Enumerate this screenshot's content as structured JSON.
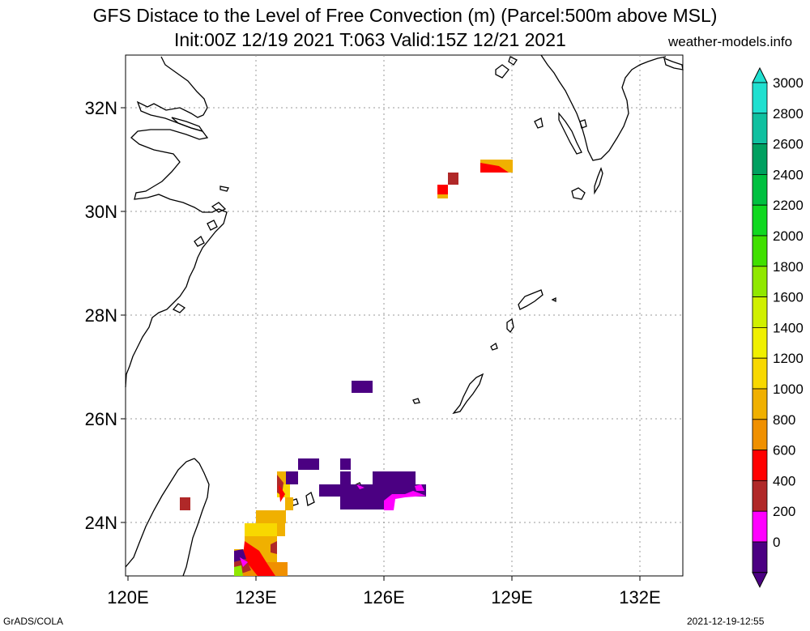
{
  "title_line1": "GFS Distace to the Level of Free Convection (m) (Parcel:500m above MSL)",
  "title_line2": "Init:00Z 12/19 2021 T:063 Valid:15Z 12/21 2021",
  "site": "weather-models.info",
  "footer_left": "GrADS/COLA",
  "footer_right": "2021-12-19-12:55",
  "lat_labels": [
    "32N",
    "30N",
    "28N",
    "26N",
    "24N"
  ],
  "lon_labels": [
    "120E",
    "123E",
    "126E",
    "129E",
    "132E"
  ],
  "colorbar": {
    "labels": [
      "3000",
      "2800",
      "2600",
      "2400",
      "2200",
      "2000",
      "1800",
      "1600",
      "1400",
      "1200",
      "1000",
      "800",
      "600",
      "400",
      "200",
      "0"
    ],
    "colors": [
      "#20e0d0",
      "#10c0a0",
      "#00a060",
      "#00c040",
      "#10d820",
      "#40e000",
      "#90e800",
      "#d0f000",
      "#f0f000",
      "#f8d800",
      "#f0b000",
      "#f09000",
      "#ff0000",
      "#b02828",
      "#ff00ff",
      "#4b0082"
    ]
  }
}
